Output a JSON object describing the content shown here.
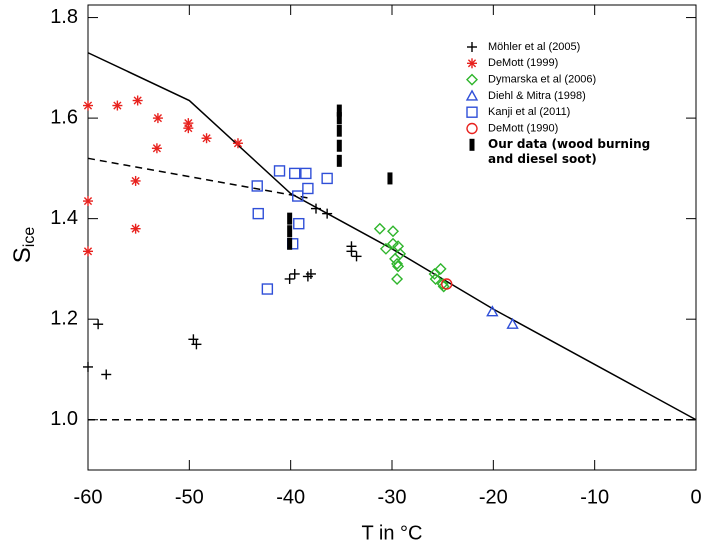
{
  "chart_data": {
    "type": "scatter",
    "xlabel": "T in °C",
    "ylabel": "S",
    "ylabel_sub": "ice",
    "xlim": [
      -60,
      0
    ],
    "ylim": [
      0.9,
      1.825
    ],
    "xticks": [
      -60,
      -50,
      -40,
      -30,
      -20,
      -10,
      0
    ],
    "yticks": [
      {
        "value": 1.0,
        "label": "1.0"
      },
      1.2,
      1.4,
      1.6,
      1.8
    ],
    "lines": [
      {
        "style": "solid",
        "color": "#000000",
        "x": [
          -60,
          -50,
          -40,
          -35,
          -30,
          -25,
          -20,
          -10,
          0
        ],
        "values": [
          1.73,
          1.635,
          1.45,
          1.395,
          1.34,
          1.28,
          1.22,
          1.11,
          1.0
        ]
      },
      {
        "style": "dashed",
        "color": "#000000",
        "x": [
          -60,
          -38
        ],
        "values": [
          1.52,
          1.44
        ]
      },
      {
        "style": "dashed",
        "color": "#000000",
        "x": [
          -60,
          0
        ],
        "values": [
          1.0,
          1.0
        ]
      }
    ],
    "series": [
      {
        "name": "Möhler et al (2005)",
        "marker": "plus",
        "color": "#000000",
        "x": [
          -60,
          -59,
          -58.2,
          -49.6,
          -49.3,
          -40.1,
          -39.6,
          -38.3,
          -38,
          -37.5,
          -36.4,
          -34,
          -34,
          -33.5
        ],
        "values": [
          1.105,
          1.19,
          1.09,
          1.16,
          1.15,
          1.28,
          1.29,
          1.285,
          1.29,
          1.42,
          1.41,
          1.345,
          1.335,
          1.325
        ]
      },
      {
        "name": "DeMott (1999)",
        "marker": "asterisk",
        "color": "#e8221e",
        "x": [
          -60,
          -60,
          -60,
          -57.1,
          -55.1,
          -55.3,
          -55.3,
          -53.1,
          -53.2,
          -50.1,
          -50.1,
          -48.3,
          -45.2
        ],
        "values": [
          1.625,
          1.435,
          1.335,
          1.625,
          1.635,
          1.475,
          1.38,
          1.6,
          1.54,
          1.59,
          1.58,
          1.56,
          1.55
        ]
      },
      {
        "name": "Dymarska et al (2006)",
        "marker": "diamond",
        "color": "#2fb52c",
        "x": [
          -31.2,
          -29.9,
          -30.6,
          -29.9,
          -29.4,
          -29.2,
          -29.7,
          -29.5,
          -29.4,
          -29.5,
          -25.8,
          -25.2,
          -25.7,
          -25,
          -24.9
        ],
        "values": [
          1.38,
          1.375,
          1.34,
          1.35,
          1.345,
          1.33,
          1.32,
          1.31,
          1.305,
          1.28,
          1.29,
          1.3,
          1.28,
          1.27,
          1.265
        ]
      },
      {
        "name": "Diehl & Mitra (1998)",
        "marker": "triangle",
        "color": "#2f4fd8",
        "x": [
          -20.1,
          -18.1
        ],
        "values": [
          1.215,
          1.19
        ]
      },
      {
        "name": "Kanji et al (2011)",
        "marker": "square",
        "color": "#2f4fd8",
        "x": [
          -41.1,
          -39.6,
          -38.5,
          -43.3,
          -43.2,
          -39.3,
          -38.3,
          -36.4,
          -39.2,
          -39.8,
          -42.3
        ],
        "values": [
          1.495,
          1.49,
          1.49,
          1.465,
          1.41,
          1.445,
          1.46,
          1.48,
          1.39,
          1.35,
          1.26
        ]
      },
      {
        "name": "DeMott (1990)",
        "marker": "circle",
        "color": "#e8221e",
        "x": [
          -24.6
        ],
        "values": [
          1.27
        ]
      },
      {
        "name": "Our data (wood burning and diesel soot)",
        "marker": "bar",
        "color": "#000000",
        "x": [
          -35.2,
          -35.2,
          -35.2,
          -35.2,
          -35.2,
          -40.1,
          -40.1,
          -40.1,
          -30.2
        ],
        "values": [
          1.515,
          1.545,
          1.575,
          1.6,
          1.615,
          1.35,
          1.375,
          1.4,
          1.48
        ]
      }
    ]
  }
}
